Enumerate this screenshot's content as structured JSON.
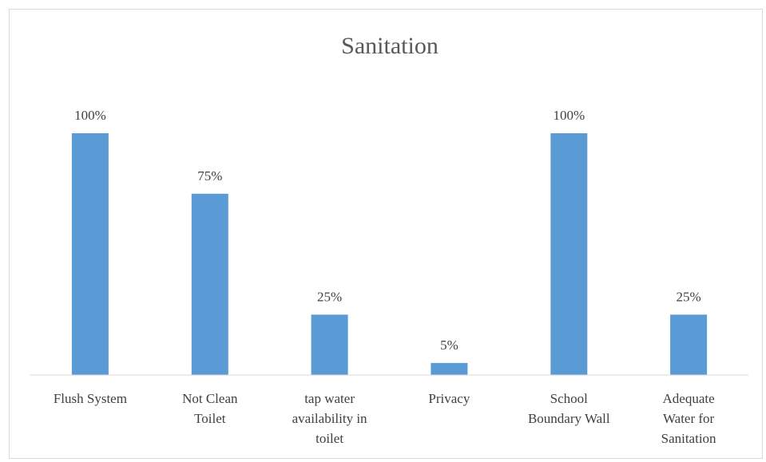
{
  "chart_data": {
    "type": "bar",
    "title": "Sanitation",
    "categories": [
      [
        "Flush System"
      ],
      [
        "Not Clean",
        "Toilet"
      ],
      [
        "tap water",
        "availability in",
        "toilet"
      ],
      [
        "Privacy"
      ],
      [
        "School",
        "Boundary Wall"
      ],
      [
        "Adequate",
        "Water for",
        "Sanitation"
      ]
    ],
    "values": [
      100,
      75,
      25,
      5,
      100,
      25
    ],
    "data_labels": [
      "100%",
      "75%",
      "25%",
      "5%",
      "100%",
      "25%"
    ],
    "ylim": [
      0,
      100
    ],
    "grid": false,
    "legend": "none",
    "bar_color": "#5b9bd5",
    "axis_color": "#d9d9d9"
  }
}
